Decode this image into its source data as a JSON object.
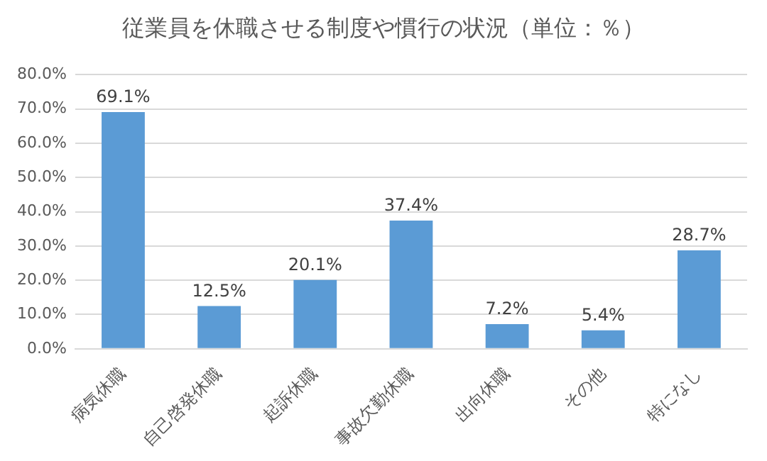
{
  "chart_data": {
    "type": "bar",
    "title": "従業員を休職させる制度や慣行の状況（単位：％）",
    "categories": [
      "病気休職",
      "自己啓発休職",
      "起訴休職",
      "事故欠勤休職",
      "出向休職",
      "その他",
      "特になし"
    ],
    "values": [
      69.1,
      12.5,
      20.1,
      37.4,
      7.2,
      5.4,
      28.7
    ],
    "value_labels": [
      "69.1%",
      "12.5%",
      "20.1%",
      "37.4%",
      "7.2%",
      "5.4%",
      "28.7%"
    ],
    "color": "#5b9bd5",
    "ylim": [
      0,
      80
    ],
    "yticks": [
      {
        "value": 0,
        "label": "0.0%"
      },
      {
        "value": 10,
        "label": "10.0%"
      },
      {
        "value": 20,
        "label": "20.0%"
      },
      {
        "value": 30,
        "label": "30.0%"
      },
      {
        "value": 40,
        "label": "40.0%"
      },
      {
        "value": 50,
        "label": "50.0%"
      },
      {
        "value": 60,
        "label": "60.0%"
      },
      {
        "value": 70,
        "label": "70.0%"
      },
      {
        "value": 80,
        "label": "80.0%"
      }
    ],
    "grid": "y",
    "legend": false
  }
}
